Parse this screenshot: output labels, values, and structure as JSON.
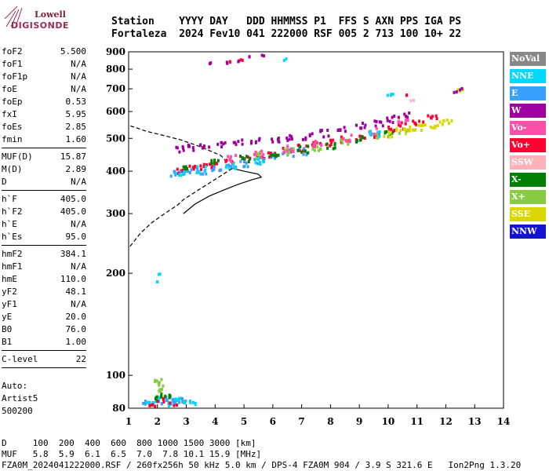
{
  "logo": {
    "line1": "Lowell",
    "line2": "DIGISONDE"
  },
  "header": {
    "line1": "Station    YYYY DAY   DDD HHMMSS P1  FFS S AXN PPS IGA PS",
    "line2": "Fortaleza  2024 Fev10 041 222000 RSF 005 2 713 100 10+ 22"
  },
  "params_group1": [
    {
      "k": "foF2",
      "v": "5.500"
    },
    {
      "k": "foF1",
      "v": "N/A"
    },
    {
      "k": "foF1p",
      "v": "N/A"
    },
    {
      "k": "foE",
      "v": "N/A"
    },
    {
      "k": "foEp",
      "v": "0.53"
    },
    {
      "k": "fxI",
      "v": "5.95"
    },
    {
      "k": "foEs",
      "v": "2.85"
    },
    {
      "k": "fmin",
      "v": "1.60"
    }
  ],
  "params_group2": [
    {
      "k": "MUF(D)",
      "v": "15.87"
    },
    {
      "k": "M(D)",
      "v": "2.89"
    },
    {
      "k": "D",
      "v": "N/A"
    }
  ],
  "params_group3": [
    {
      "k": "h`F",
      "v": "405.0"
    },
    {
      "k": "h`F2",
      "v": "405.0"
    },
    {
      "k": "h`E",
      "v": "N/A"
    },
    {
      "k": "h`Es",
      "v": "95.0"
    }
  ],
  "params_group4": [
    {
      "k": "hmF2",
      "v": "384.1"
    },
    {
      "k": "hmF1",
      "v": "N/A"
    },
    {
      "k": "hmE",
      "v": "110.0"
    },
    {
      "k": "yF2",
      "v": "48.1"
    },
    {
      "k": "yF1",
      "v": "N/A"
    },
    {
      "k": "yE",
      "v": "20.0"
    },
    {
      "k": "B0",
      "v": "76.0"
    },
    {
      "k": "B1",
      "v": "1.00"
    }
  ],
  "params_group5": [
    {
      "k": "C-level",
      "v": "22"
    }
  ],
  "auto": {
    "line1": "Auto:",
    "line2": "Artist5",
    "line3": "500200"
  },
  "footer": {
    "line1": "D     100  200  400  600  800 1000 1500 3000 [km]",
    "line2": "MUF   5.8  5.9  6.1  6.5  7.0  7.8 10.1 15.9 [MHz]",
    "line3": "FZA0M_2024041222000.RSF / 260fx256h 50 kHz 5.0 km / DPS-4 FZA0M 904 / 3.9 S 321.6 E   Ion2Png 1.3.20"
  },
  "legend": [
    {
      "label": "NoVal",
      "color": "#888888"
    },
    {
      "label": "NNE",
      "color": "#00d8ff"
    },
    {
      "label": "E",
      "color": "#3aa0ff"
    },
    {
      "label": "W",
      "color": "#a000a0"
    },
    {
      "label": "Vo-",
      "color": "#ff4fa8"
    },
    {
      "label": "Vo+",
      "color": "#ff0030"
    },
    {
      "label": "SSW",
      "color": "#ffb0b8"
    },
    {
      "label": "X-",
      "color": "#008000"
    },
    {
      "label": "X+",
      "color": "#88cc44"
    },
    {
      "label": "SSE",
      "color": "#d8d800"
    },
    {
      "label": "NNW",
      "color": "#1414d0"
    }
  ],
  "chart_data": {
    "type": "scatter",
    "xlim": [
      1,
      14
    ],
    "ylim": [
      80,
      900
    ],
    "y_scale": "log",
    "xticks": [
      1,
      2,
      3,
      4,
      5,
      6,
      7,
      8,
      9,
      10,
      11,
      12,
      13,
      14
    ],
    "yticks": [
      80,
      100,
      200,
      300,
      400,
      500,
      600,
      700,
      800,
      900
    ],
    "grid": false,
    "legend_position": "right",
    "profile_solid": [
      [
        2.9,
        300
      ],
      [
        3.3,
        320
      ],
      [
        3.8,
        338
      ],
      [
        4.3,
        352
      ],
      [
        4.8,
        366
      ],
      [
        5.3,
        378
      ],
      [
        5.6,
        384
      ],
      [
        5.5,
        392
      ],
      [
        5.0,
        400
      ],
      [
        4.6,
        408
      ]
    ],
    "profile_dashed": [
      [
        1.05,
        240
      ],
      [
        1.4,
        262
      ],
      [
        1.8,
        282
      ],
      [
        2.3,
        302
      ],
      [
        2.7,
        318
      ],
      [
        2.9,
        330
      ],
      [
        4.6,
        408
      ],
      [
        4.2,
        445
      ],
      [
        3.5,
        472
      ],
      [
        2.8,
        495
      ],
      [
        2.2,
        510
      ],
      [
        1.6,
        525
      ],
      [
        1.05,
        545
      ]
    ],
    "echo_trace_F": [
      {
        "series": "Vo+",
        "points": [
          [
            2.8,
            405
          ],
          [
            3.2,
            410
          ],
          [
            3.6,
            418
          ],
          [
            4.0,
            422
          ],
          [
            4.5,
            430
          ],
          [
            5.0,
            438
          ],
          [
            5.5,
            448
          ],
          [
            6.0,
            455
          ],
          [
            6.5,
            465
          ],
          [
            7.0,
            472
          ],
          [
            7.5,
            480
          ],
          [
            8.0,
            490
          ],
          [
            8.5,
            500
          ],
          [
            9.0,
            510
          ],
          [
            9.5,
            520
          ],
          [
            10.0,
            535
          ],
          [
            10.5,
            550
          ],
          [
            11.0,
            565
          ],
          [
            11.5,
            580
          ]
        ]
      },
      {
        "series": "E",
        "points": [
          [
            2.6,
            395
          ],
          [
            3.0,
            400
          ],
          [
            3.5,
            405
          ],
          [
            4.0,
            410
          ],
          [
            4.5,
            418
          ],
          [
            5.0,
            425
          ],
          [
            5.5,
            435
          ],
          [
            6.0,
            445
          ],
          [
            6.5,
            455
          ],
          [
            7.0,
            462
          ]
        ]
      },
      {
        "series": "W",
        "points": [
          [
            2.8,
            470
          ],
          [
            3.2,
            475
          ],
          [
            3.6,
            480
          ],
          [
            4.2,
            485
          ],
          [
            4.8,
            490
          ],
          [
            5.4,
            495
          ],
          [
            6.0,
            500
          ],
          [
            6.6,
            505
          ],
          [
            7.2,
            512
          ],
          [
            7.8,
            522
          ],
          [
            8.4,
            535
          ],
          [
            9.0,
            548
          ],
          [
            9.6,
            560
          ],
          [
            10.0,
            575
          ],
          [
            10.5,
            590
          ]
        ]
      },
      {
        "series": "X-",
        "points": [
          [
            3.0,
            410
          ],
          [
            4.0,
            428
          ],
          [
            5.0,
            440
          ],
          [
            6.0,
            455
          ],
          [
            7.0,
            468
          ],
          [
            8.0,
            480
          ],
          [
            9.0,
            500
          ],
          [
            10.0,
            520
          ]
        ]
      },
      {
        "series": "X+",
        "points": [
          [
            5.5,
            450
          ],
          [
            6.5,
            462
          ],
          [
            7.5,
            475
          ],
          [
            8.5,
            495
          ],
          [
            9.5,
            512
          ],
          [
            10.5,
            530
          ]
        ]
      },
      {
        "series": "SSE",
        "points": [
          [
            10.0,
            520
          ],
          [
            10.4,
            528
          ],
          [
            10.8,
            535
          ],
          [
            11.2,
            545
          ],
          [
            11.6,
            555
          ],
          [
            12.0,
            565
          ]
        ]
      },
      {
        "series": "Vo-",
        "points": [
          [
            4.5,
            440
          ],
          [
            5.5,
            455
          ],
          [
            6.5,
            470
          ],
          [
            7.5,
            485
          ],
          [
            8.5,
            505
          ],
          [
            9.5,
            530
          ],
          [
            10.5,
            560
          ]
        ]
      },
      {
        "series": "NNE",
        "points": [
          [
            2.7,
            400
          ],
          [
            3.5,
            408
          ],
          [
            4.5,
            420
          ],
          [
            5.5,
            430
          ],
          [
            9.5,
            520
          ]
        ]
      }
    ],
    "echo_trace_Es": [
      {
        "series": "E",
        "points": [
          [
            1.6,
            84
          ],
          [
            1.8,
            85
          ],
          [
            2.0,
            84
          ],
          [
            2.2,
            86
          ],
          [
            2.4,
            85
          ],
          [
            2.6,
            84
          ],
          [
            2.8,
            85
          ],
          [
            3.0,
            84
          ]
        ]
      },
      {
        "series": "NNE",
        "points": [
          [
            1.7,
            83
          ],
          [
            2.0,
            87
          ],
          [
            2.3,
            83
          ],
          [
            2.6,
            86
          ],
          [
            3.0,
            83
          ],
          [
            3.2,
            84
          ]
        ]
      },
      {
        "series": "X-",
        "points": [
          [
            1.9,
            86
          ],
          [
            2.1,
            88
          ],
          [
            2.3,
            87
          ]
        ]
      },
      {
        "series": "Vo+",
        "points": [
          [
            1.8,
            83
          ],
          [
            2.1,
            85
          ],
          [
            2.5,
            83
          ]
        ]
      },
      {
        "series": "X+",
        "points": [
          [
            2.0,
            92
          ],
          [
            2.1,
            95
          ],
          [
            2.0,
            98
          ]
        ]
      }
    ],
    "echo_scattered": [
      {
        "series": "W",
        "points": [
          [
            3.8,
            840
          ],
          [
            4.4,
            845
          ],
          [
            4.8,
            855
          ],
          [
            5.2,
            875
          ],
          [
            5.6,
            885
          ]
        ]
      },
      {
        "series": "Vo+",
        "points": [
          [
            4.5,
            850
          ],
          [
            4.9,
            860
          ]
        ]
      },
      {
        "series": "NNE",
        "points": [
          [
            6.4,
            862
          ],
          [
            2.0,
            200
          ],
          [
            2.0,
            190
          ]
        ]
      },
      {
        "series": "SSE",
        "points": [
          [
            12.4,
            700
          ],
          [
            12.5,
            705
          ]
        ]
      }
    ],
    "high_points": [
      {
        "series": "W",
        "points": [
          [
            12.3,
            690
          ],
          [
            12.5,
            705
          ]
        ]
      },
      {
        "series": "NNE",
        "points": [
          [
            10.0,
            680
          ],
          [
            10.1,
            678
          ]
        ]
      },
      {
        "series": "SSW",
        "points": [
          [
            10.8,
            650
          ]
        ]
      },
      {
        "series": "Vo+",
        "points": [
          [
            10.6,
            675
          ]
        ]
      }
    ]
  }
}
